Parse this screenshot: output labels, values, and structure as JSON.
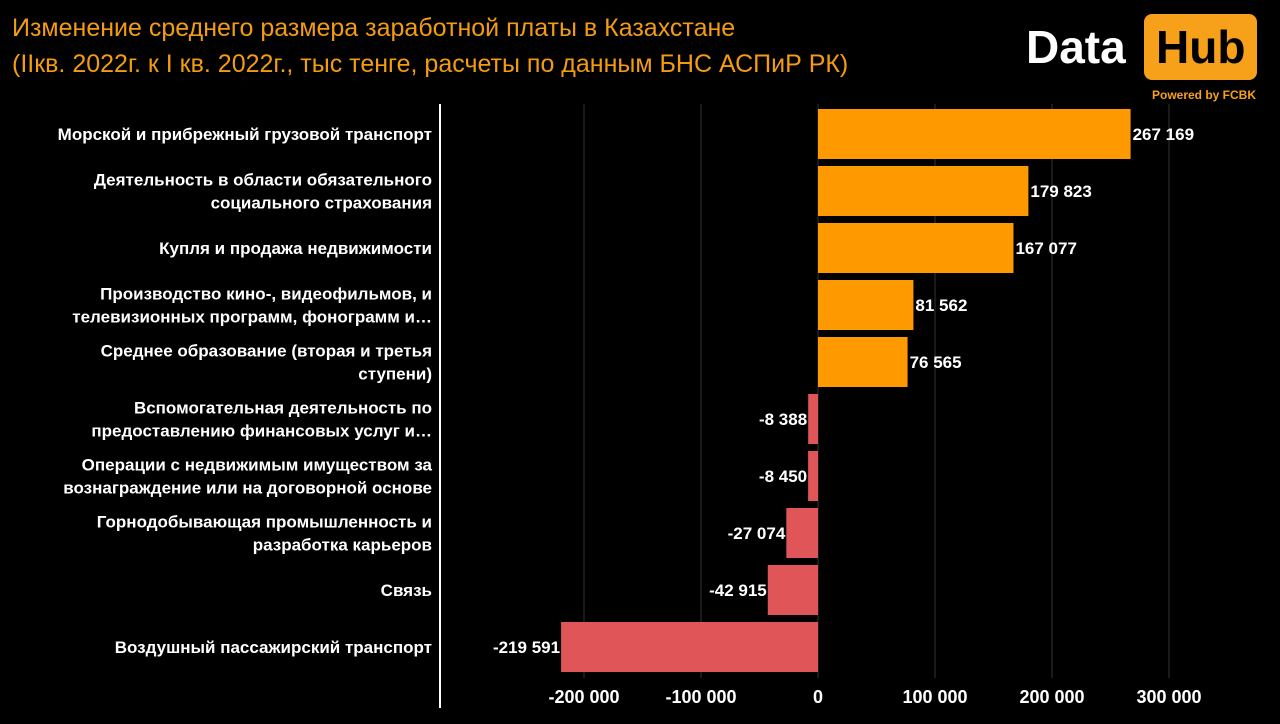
{
  "header": {
    "title_line1": "Изменение среднего размера заработной платы в Казахстане",
    "title_line2": "(IIкв. 2022г. к I кв. 2022г., тыс тенге, расчеты по данным БНС АСПиР РК)"
  },
  "logo": {
    "word1": "Data",
    "word2": "Hub",
    "powered": "Powered by FCBK"
  },
  "chart_data": {
    "type": "bar",
    "orientation": "horizontal",
    "categories": [
      [
        "Морской и прибрежный грузовой транспорт"
      ],
      [
        "Деятельность в области обязательного",
        "социального страхования"
      ],
      [
        "Купля и продажа недвижимости"
      ],
      [
        "Производство кино-, видеофильмов, и",
        "телевизионных программ, фонограмм и…"
      ],
      [
        "Среднее образование (вторая и третья",
        "ступени)"
      ],
      [
        "Вспомогательная деятельность по",
        "предоставлению финансовых услуг и…"
      ],
      [
        "Операции с недвижимым имуществом за",
        "вознаграждение или на договорной основе"
      ],
      [
        "Горнодобывающая промышленность и",
        "разработка карьеров"
      ],
      [
        "Связь"
      ],
      [
        "Воздушный пассажирский транспорт"
      ]
    ],
    "values": [
      267169,
      179823,
      167077,
      81562,
      76565,
      -8388,
      -8450,
      -27074,
      -42915,
      -219591
    ],
    "value_labels": [
      "267 169",
      "179 823",
      "167 077",
      "81 562",
      "76 565",
      "-8 388",
      "-8 450",
      "-27 074",
      "-42 915",
      "-219 591"
    ],
    "xlim": [
      -300000,
      300000
    ],
    "ticks": [
      -200000,
      -100000,
      0,
      100000,
      200000,
      300000
    ],
    "tick_labels": [
      "-200 000",
      "-100 000",
      "0",
      "100 000",
      "200 000",
      "300 000"
    ],
    "colors": {
      "positive": "#FF9900",
      "negative": "#E05658",
      "grid": "#333333",
      "axis": "#ffffff"
    },
    "grid": true
  }
}
